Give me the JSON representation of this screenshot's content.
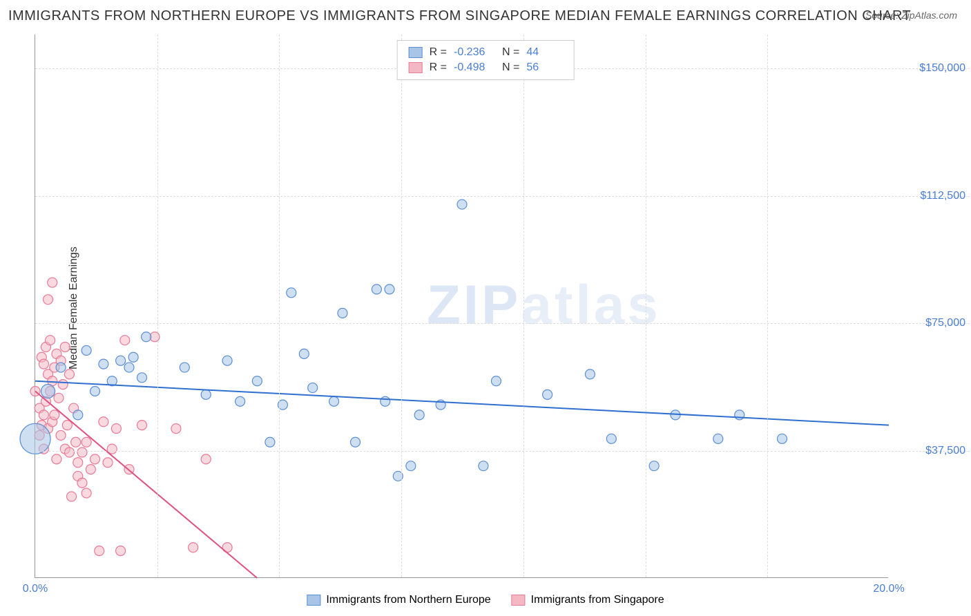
{
  "title": "IMMIGRANTS FROM NORTHERN EUROPE VS IMMIGRANTS FROM SINGAPORE MEDIAN FEMALE EARNINGS CORRELATION CHART",
  "source": "Source: ZipAtlas.com",
  "y_axis_label": "Median Female Earnings",
  "watermark": "ZIPatlas",
  "chart": {
    "type": "scatter",
    "xlim": [
      0,
      20
    ],
    "ylim": [
      0,
      160000
    ],
    "x_ticks": [
      {
        "v": 0,
        "label": "0.0%"
      },
      {
        "v": 20,
        "label": "20.0%"
      }
    ],
    "x_minor_ticks": [
      2.86,
      5.72,
      8.58,
      11.44,
      14.3,
      17.16
    ],
    "y_ticks": [
      {
        "v": 37500,
        "label": "$37,500"
      },
      {
        "v": 75000,
        "label": "$75,000"
      },
      {
        "v": 112500,
        "label": "$112,500"
      },
      {
        "v": 150000,
        "label": "$150,000"
      }
    ],
    "background_color": "#ffffff",
    "grid_color": "#dddddd",
    "series": [
      {
        "name": "Immigrants from Northern Europe",
        "color_fill": "#a8c5e8",
        "color_stroke": "#5b8fd4",
        "opacity": 0.55,
        "R": "-0.236",
        "N": "44",
        "trend": {
          "x1": 0,
          "y1": 58000,
          "x2": 20,
          "y2": 45000,
          "color": "#2e6fd0",
          "width": 2
        },
        "points": [
          {
            "x": 0.0,
            "y": 41000,
            "r": 22
          },
          {
            "x": 0.3,
            "y": 55000,
            "r": 10
          },
          {
            "x": 0.6,
            "y": 62000,
            "r": 7
          },
          {
            "x": 1.0,
            "y": 48000,
            "r": 7
          },
          {
            "x": 1.2,
            "y": 67000,
            "r": 7
          },
          {
            "x": 1.4,
            "y": 55000,
            "r": 7
          },
          {
            "x": 1.6,
            "y": 63000,
            "r": 7
          },
          {
            "x": 1.8,
            "y": 58000,
            "r": 7
          },
          {
            "x": 2.0,
            "y": 64000,
            "r": 7
          },
          {
            "x": 2.2,
            "y": 62000,
            "r": 7
          },
          {
            "x": 2.3,
            "y": 65000,
            "r": 7
          },
          {
            "x": 2.5,
            "y": 59000,
            "r": 7
          },
          {
            "x": 2.6,
            "y": 71000,
            "r": 7
          },
          {
            "x": 3.5,
            "y": 62000,
            "r": 7
          },
          {
            "x": 4.0,
            "y": 54000,
            "r": 7
          },
          {
            "x": 4.5,
            "y": 64000,
            "r": 7
          },
          {
            "x": 4.8,
            "y": 52000,
            "r": 7
          },
          {
            "x": 5.2,
            "y": 58000,
            "r": 7
          },
          {
            "x": 5.5,
            "y": 40000,
            "r": 7
          },
          {
            "x": 5.8,
            "y": 51000,
            "r": 7
          },
          {
            "x": 6.0,
            "y": 84000,
            "r": 7
          },
          {
            "x": 6.3,
            "y": 66000,
            "r": 7
          },
          {
            "x": 6.5,
            "y": 56000,
            "r": 7
          },
          {
            "x": 7.0,
            "y": 52000,
            "r": 7
          },
          {
            "x": 7.2,
            "y": 78000,
            "r": 7
          },
          {
            "x": 7.5,
            "y": 40000,
            "r": 7
          },
          {
            "x": 8.0,
            "y": 85000,
            "r": 7
          },
          {
            "x": 8.2,
            "y": 52000,
            "r": 7
          },
          {
            "x": 8.3,
            "y": 85000,
            "r": 7
          },
          {
            "x": 8.5,
            "y": 30000,
            "r": 7
          },
          {
            "x": 8.8,
            "y": 33000,
            "r": 7
          },
          {
            "x": 9.0,
            "y": 48000,
            "r": 7
          },
          {
            "x": 9.5,
            "y": 51000,
            "r": 7
          },
          {
            "x": 10.0,
            "y": 110000,
            "r": 7
          },
          {
            "x": 10.5,
            "y": 33000,
            "r": 7
          },
          {
            "x": 10.8,
            "y": 58000,
            "r": 7
          },
          {
            "x": 12.0,
            "y": 54000,
            "r": 7
          },
          {
            "x": 13.0,
            "y": 60000,
            "r": 7
          },
          {
            "x": 13.5,
            "y": 41000,
            "r": 7
          },
          {
            "x": 14.5,
            "y": 33000,
            "r": 7
          },
          {
            "x": 15.0,
            "y": 48000,
            "r": 7
          },
          {
            "x": 16.0,
            "y": 41000,
            "r": 7
          },
          {
            "x": 16.5,
            "y": 48000,
            "r": 7
          },
          {
            "x": 17.5,
            "y": 41000,
            "r": 7
          }
        ]
      },
      {
        "name": "Immigrants from Singapore",
        "color_fill": "#f4b8c4",
        "color_stroke": "#e87a96",
        "opacity": 0.55,
        "R": "-0.498",
        "N": "56",
        "trend": {
          "x1": 0,
          "y1": 55000,
          "x2": 5.2,
          "y2": 0,
          "color": "#e05080",
          "width": 2
        },
        "points": [
          {
            "x": 0.0,
            "y": 55000,
            "r": 7
          },
          {
            "x": 0.1,
            "y": 50000,
            "r": 7
          },
          {
            "x": 0.1,
            "y": 42000,
            "r": 7
          },
          {
            "x": 0.15,
            "y": 65000,
            "r": 7
          },
          {
            "x": 0.15,
            "y": 45000,
            "r": 7
          },
          {
            "x": 0.2,
            "y": 63000,
            "r": 7
          },
          {
            "x": 0.2,
            "y": 48000,
            "r": 7
          },
          {
            "x": 0.2,
            "y": 38000,
            "r": 7
          },
          {
            "x": 0.25,
            "y": 68000,
            "r": 7
          },
          {
            "x": 0.25,
            "y": 52000,
            "r": 7
          },
          {
            "x": 0.3,
            "y": 82000,
            "r": 7
          },
          {
            "x": 0.3,
            "y": 60000,
            "r": 7
          },
          {
            "x": 0.3,
            "y": 44000,
            "r": 7
          },
          {
            "x": 0.35,
            "y": 70000,
            "r": 7
          },
          {
            "x": 0.35,
            "y": 55000,
            "r": 7
          },
          {
            "x": 0.4,
            "y": 87000,
            "r": 7
          },
          {
            "x": 0.4,
            "y": 58000,
            "r": 7
          },
          {
            "x": 0.4,
            "y": 46000,
            "r": 7
          },
          {
            "x": 0.45,
            "y": 62000,
            "r": 7
          },
          {
            "x": 0.45,
            "y": 48000,
            "r": 7
          },
          {
            "x": 0.5,
            "y": 66000,
            "r": 7
          },
          {
            "x": 0.5,
            "y": 35000,
            "r": 7
          },
          {
            "x": 0.55,
            "y": 53000,
            "r": 7
          },
          {
            "x": 0.6,
            "y": 64000,
            "r": 7
          },
          {
            "x": 0.6,
            "y": 42000,
            "r": 7
          },
          {
            "x": 0.65,
            "y": 57000,
            "r": 7
          },
          {
            "x": 0.7,
            "y": 68000,
            "r": 7
          },
          {
            "x": 0.7,
            "y": 38000,
            "r": 7
          },
          {
            "x": 0.75,
            "y": 45000,
            "r": 7
          },
          {
            "x": 0.8,
            "y": 60000,
            "r": 7
          },
          {
            "x": 0.8,
            "y": 37000,
            "r": 7
          },
          {
            "x": 0.85,
            "y": 24000,
            "r": 7
          },
          {
            "x": 0.9,
            "y": 50000,
            "r": 7
          },
          {
            "x": 0.95,
            "y": 40000,
            "r": 7
          },
          {
            "x": 1.0,
            "y": 30000,
            "r": 7
          },
          {
            "x": 1.0,
            "y": 34000,
            "r": 7
          },
          {
            "x": 1.1,
            "y": 28000,
            "r": 7
          },
          {
            "x": 1.1,
            "y": 37000,
            "r": 7
          },
          {
            "x": 1.2,
            "y": 25000,
            "r": 7
          },
          {
            "x": 1.2,
            "y": 40000,
            "r": 7
          },
          {
            "x": 1.3,
            "y": 32000,
            "r": 7
          },
          {
            "x": 1.4,
            "y": 35000,
            "r": 7
          },
          {
            "x": 1.5,
            "y": 8000,
            "r": 7
          },
          {
            "x": 1.6,
            "y": 46000,
            "r": 7
          },
          {
            "x": 1.7,
            "y": 34000,
            "r": 7
          },
          {
            "x": 1.8,
            "y": 38000,
            "r": 7
          },
          {
            "x": 1.9,
            "y": 44000,
            "r": 7
          },
          {
            "x": 2.0,
            "y": 8000,
            "r": 7
          },
          {
            "x": 2.1,
            "y": 70000,
            "r": 7
          },
          {
            "x": 2.2,
            "y": 32000,
            "r": 7
          },
          {
            "x": 2.5,
            "y": 45000,
            "r": 7
          },
          {
            "x": 2.8,
            "y": 71000,
            "r": 7
          },
          {
            "x": 3.3,
            "y": 44000,
            "r": 7
          },
          {
            "x": 3.7,
            "y": 9000,
            "r": 7
          },
          {
            "x": 4.0,
            "y": 35000,
            "r": 7
          },
          {
            "x": 4.5,
            "y": 9000,
            "r": 7
          }
        ]
      }
    ]
  }
}
